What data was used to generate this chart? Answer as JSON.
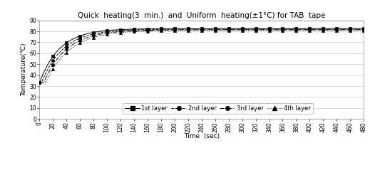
{
  "title": "Quick  heating(3  min.)  and  Uniform  heating(±1°C) for TAB  tape",
  "xlabel": "Time  (sec)",
  "ylabel": "Temperature(℃)",
  "xlim": [
    0,
    480
  ],
  "ylim": [
    0,
    90
  ],
  "xticks": [
    0,
    20,
    40,
    60,
    80,
    100,
    120,
    140,
    160,
    180,
    200,
    220,
    240,
    260,
    280,
    300,
    320,
    340,
    360,
    380,
    400,
    420,
    440,
    460,
    480
  ],
  "yticks": [
    0,
    10,
    20,
    30,
    40,
    50,
    60,
    70,
    80,
    90
  ],
  "T_start": 33,
  "t_ends": [
    82.5,
    82.0,
    81.5,
    81.0
  ],
  "taus": [
    30,
    32,
    34,
    36
  ],
  "delays": [
    0,
    3,
    6,
    9
  ],
  "legend_labels": [
    "1st layer",
    "2nd layer",
    "3rd layer",
    "4th layer"
  ],
  "line_colors": [
    "#000000",
    "#000000",
    "#000000",
    "#000000"
  ],
  "markers": [
    "s",
    "o",
    "o",
    "^"
  ],
  "marker_sizes": [
    3,
    3,
    3,
    3
  ],
  "line_styles": [
    "-",
    "--",
    "-.",
    ":"
  ],
  "grid_color": "#cccccc",
  "bg_color": "#ffffff",
  "title_fontsize": 7.5,
  "axis_label_fontsize": 6.5,
  "tick_fontsize": 5.5,
  "legend_fontsize": 6
}
